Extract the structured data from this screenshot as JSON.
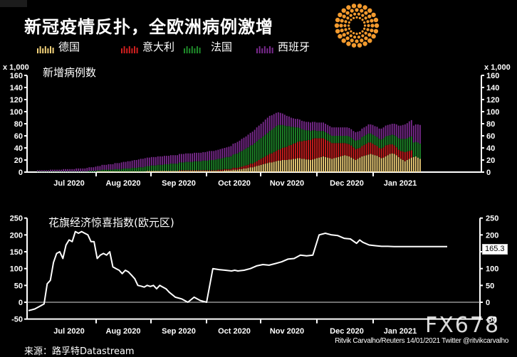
{
  "header": {
    "title": "新冠疫情反扑，全欧洲病例激增",
    "legend": [
      {
        "label": "德国",
        "color": "#f3d27a"
      },
      {
        "label": "意大利",
        "color": "#d01f1f"
      },
      {
        "label": "法国",
        "color": "#1f8a2a"
      },
      {
        "label": "西班牙",
        "color": "#7a2a8e"
      }
    ]
  },
  "chart_data": [
    {
      "type": "bar",
      "stacked": true,
      "title": "新增病例数",
      "ylabel": "x 1,000",
      "ylim": [
        0,
        160
      ],
      "yticks": [
        0,
        20,
        40,
        60,
        80,
        100,
        120,
        140,
        160
      ],
      "xtick_labels": [
        "Jul 2020",
        "Aug 2020",
        "Sep 2020",
        "Oct 2020",
        "Nov 2020",
        "Dec 2020",
        "Jan 2021"
      ],
      "legend_position": "top",
      "series": [
        {
          "name": "德国",
          "color": "#f3d27a",
          "values": [
            0,
            0,
            0,
            0,
            0,
            0,
            0,
            0,
            0,
            0,
            0,
            0,
            0,
            0,
            0,
            0,
            0,
            0,
            0,
            0,
            0,
            0,
            0,
            0,
            0,
            0,
            0,
            0,
            1,
            1,
            1,
            1,
            1,
            1,
            1,
            1,
            1,
            1,
            1,
            1,
            1,
            1,
            1,
            1,
            1,
            1,
            1,
            1,
            1,
            1,
            1,
            2,
            2,
            2,
            2,
            2,
            2,
            2,
            2,
            2,
            2,
            2,
            2,
            2,
            2,
            2,
            2,
            2,
            2,
            2,
            2,
            2,
            2,
            2,
            2,
            2,
            2,
            2,
            2,
            2,
            2,
            2,
            2,
            2,
            2,
            2,
            2,
            3,
            3,
            3,
            3,
            4,
            4,
            4,
            5,
            5,
            6,
            6,
            7,
            8,
            8,
            9,
            10,
            11,
            12,
            13,
            14,
            15,
            16,
            16,
            17,
            18,
            19,
            19,
            20,
            20,
            20,
            21,
            21,
            22,
            22,
            23,
            23,
            22,
            22,
            21,
            21,
            20,
            21,
            22,
            23,
            24,
            25,
            26,
            25,
            24,
            23,
            22,
            23,
            24,
            25,
            26,
            27,
            28,
            27,
            26,
            24,
            22,
            20,
            22,
            24,
            26,
            27,
            28,
            29,
            30,
            29,
            28,
            27,
            25,
            23,
            24,
            26,
            28,
            30,
            31,
            30,
            28,
            25,
            22,
            20,
            18,
            20,
            22,
            24,
            25,
            26,
            24,
            22
          ]
        },
        {
          "name": "意大利",
          "color": "#d01f1f",
          "values": [
            0,
            0,
            0,
            0,
            0,
            0,
            0,
            0,
            0,
            0,
            0,
            0,
            0,
            0,
            0,
            0,
            0,
            0,
            0,
            0,
            0,
            0,
            0,
            0,
            0,
            0,
            0,
            0,
            0,
            0,
            0,
            0,
            0,
            0,
            0,
            0,
            0,
            0,
            0,
            0,
            0,
            0,
            0,
            0,
            0,
            0,
            0,
            0,
            0,
            0,
            0,
            0,
            0,
            0,
            0,
            0,
            0,
            0,
            0,
            0,
            0,
            0,
            0,
            0,
            0,
            0,
            1,
            1,
            1,
            1,
            1,
            1,
            1,
            1,
            1,
            1,
            1,
            1,
            1,
            1,
            1,
            1,
            1,
            1,
            2,
            2,
            2,
            2,
            2,
            2,
            2,
            3,
            3,
            3,
            3,
            4,
            4,
            5,
            5,
            6,
            6,
            7,
            8,
            9,
            10,
            11,
            12,
            13,
            14,
            15,
            16,
            17,
            18,
            19,
            20,
            21,
            22,
            23,
            24,
            25,
            26,
            27,
            28,
            29,
            30,
            31,
            32,
            33,
            34,
            34,
            33,
            32,
            31,
            30,
            29,
            28,
            27,
            26,
            25,
            24,
            23,
            22,
            21,
            20,
            20,
            20,
            20,
            19,
            18,
            17,
            16,
            17,
            18,
            19,
            20,
            19,
            18,
            17,
            16,
            15,
            16,
            17,
            18,
            17,
            16,
            15,
            14,
            13,
            12,
            13,
            14,
            15,
            14,
            13,
            12
          ]
        },
        {
          "name": "法国",
          "color": "#1f8a2a",
          "values": [
            1,
            1,
            1,
            1,
            1,
            1,
            1,
            1,
            1,
            1,
            1,
            1,
            1,
            1,
            1,
            1,
            1,
            1,
            1,
            1,
            1,
            1,
            1,
            1,
            2,
            2,
            2,
            2,
            2,
            2,
            3,
            3,
            3,
            3,
            3,
            3,
            4,
            4,
            4,
            4,
            5,
            5,
            5,
            5,
            6,
            6,
            6,
            7,
            7,
            7,
            8,
            8,
            8,
            9,
            9,
            9,
            10,
            10,
            10,
            11,
            11,
            11,
            12,
            12,
            12,
            12,
            13,
            13,
            13,
            14,
            14,
            14,
            14,
            15,
            15,
            15,
            15,
            16,
            16,
            16,
            17,
            17,
            17,
            18,
            18,
            18,
            19,
            19,
            20,
            20,
            21,
            22,
            23,
            24,
            25,
            26,
            27,
            28,
            29,
            30,
            31,
            32,
            33,
            34,
            34,
            35,
            36,
            37,
            38,
            39,
            40,
            41,
            41,
            40,
            38,
            36,
            34,
            32,
            30,
            28,
            26,
            24,
            22,
            20,
            18,
            17,
            16,
            15,
            14,
            13,
            12,
            12,
            12,
            12,
            12,
            12,
            12,
            12,
            12,
            12,
            12,
            12,
            12,
            12,
            13,
            13,
            13,
            13,
            14,
            14,
            14,
            15,
            15,
            15,
            15,
            15,
            15,
            15,
            15,
            15,
            15,
            15,
            15,
            15,
            15,
            16,
            17,
            18,
            19,
            20,
            21,
            22,
            22,
            23,
            23,
            24,
            24,
            25,
            25
          ]
        },
        {
          "name": "西班牙",
          "color": "#7a2a8e",
          "values": [
            2,
            2,
            2,
            2,
            2,
            2,
            3,
            3,
            3,
            3,
            3,
            3,
            4,
            4,
            4,
            4,
            4,
            4,
            5,
            5,
            5,
            5,
            5,
            6,
            6,
            6,
            6,
            7,
            7,
            7,
            8,
            8,
            8,
            9,
            9,
            9,
            10,
            10,
            10,
            11,
            11,
            11,
            12,
            12,
            12,
            13,
            13,
            13,
            14,
            14,
            14,
            14,
            14,
            14,
            14,
            14,
            14,
            14,
            14,
            14,
            14,
            14,
            14,
            14,
            14,
            14,
            14,
            14,
            14,
            14,
            14,
            14,
            14,
            14,
            14,
            14,
            14,
            14,
            14,
            15,
            15,
            15,
            15,
            15,
            15,
            16,
            16,
            16,
            16,
            17,
            17,
            18,
            18,
            19,
            19,
            20,
            20,
            20,
            21,
            21,
            22,
            22,
            23,
            23,
            24,
            24,
            25,
            25,
            25,
            24,
            23,
            22,
            21,
            20,
            19,
            18,
            17,
            16,
            15,
            14,
            14,
            14,
            14,
            14,
            14,
            14,
            14,
            14,
            14,
            14,
            14,
            14,
            14,
            14,
            14,
            14,
            14,
            14,
            14,
            14,
            14,
            14,
            14,
            14,
            14,
            14,
            14,
            14,
            14,
            14,
            14,
            14,
            14,
            14,
            15,
            15,
            16,
            16,
            17,
            17,
            18,
            18,
            18,
            18,
            18,
            18,
            19,
            20,
            21,
            22,
            23,
            24,
            25,
            26,
            27,
            28,
            29,
            30,
            31
          ]
        }
      ]
    },
    {
      "type": "line",
      "title": "花旗经济惊喜指数(欧元区)",
      "ylim": [
        -50,
        250
      ],
      "yticks": [
        -50,
        0,
        50,
        100,
        150,
        200,
        250
      ],
      "xtick_labels": [
        "Jul 2020",
        "Aug 2020",
        "Sep 2020",
        "Oct 2020",
        "Nov 2020",
        "Dec 2020",
        "Jan 2021"
      ],
      "last_value_label": "165.3",
      "series": [
        {
          "name": "花旗经济惊喜指数(欧元区)",
          "color": "#ffffff",
          "x_months": [
            5.75,
            5.85,
            5.95,
            6.0,
            6.05,
            6.1,
            6.15,
            6.2,
            6.25,
            6.3,
            6.35,
            6.4,
            6.45,
            6.5,
            6.55,
            6.6,
            6.65,
            6.7,
            6.75,
            6.8,
            6.85,
            6.9,
            6.95,
            7.0,
            7.05,
            7.1,
            7.15,
            7.2,
            7.25,
            7.3,
            7.35,
            7.4,
            7.45,
            7.5,
            7.55,
            7.6,
            7.65,
            7.7,
            7.75,
            7.8,
            7.85,
            7.9,
            7.95,
            8.0,
            8.1,
            8.2,
            8.3,
            8.4,
            8.5,
            8.6,
            8.7,
            8.8,
            8.9,
            9.0,
            9.05,
            9.1,
            9.2,
            9.3,
            9.4,
            9.5,
            9.6,
            9.7,
            9.8,
            9.9,
            10.0,
            10.05,
            10.1,
            10.2,
            10.3,
            10.4,
            10.5,
            10.6,
            10.7,
            10.8,
            10.9,
            11.0,
            11.05,
            11.1,
            11.2,
            11.3,
            11.4,
            11.5,
            11.6,
            11.7,
            11.8,
            11.9,
            12.0,
            12.1,
            12.2,
            12.3,
            12.45
          ],
          "values": [
            -25,
            -20,
            -10,
            -5,
            55,
            65,
            118,
            145,
            150,
            130,
            170,
            185,
            180,
            210,
            205,
            210,
            205,
            200,
            180,
            180,
            130,
            140,
            145,
            140,
            150,
            105,
            100,
            95,
            85,
            95,
            90,
            80,
            70,
            50,
            48,
            45,
            50,
            47,
            50,
            40,
            50,
            45,
            40,
            30,
            15,
            10,
            0,
            15,
            5,
            0,
            100,
            97,
            95,
            93,
            95,
            93,
            95,
            100,
            108,
            112,
            110,
            115,
            120,
            128,
            130,
            135,
            140,
            138,
            140,
            200,
            205,
            200,
            198,
            190,
            188,
            175,
            185,
            178,
            170,
            168,
            166,
            166,
            165.3,
            165.3,
            165.3,
            165.3,
            165.3,
            165.3,
            165.3,
            165.3,
            165.3
          ]
        }
      ]
    }
  ],
  "credit": "Ritvik Carvalho/Reuters 14/01/2021 Twitter @ritvikcarvalho",
  "source": "来源：路孚特Datastream",
  "watermark": "FX678"
}
